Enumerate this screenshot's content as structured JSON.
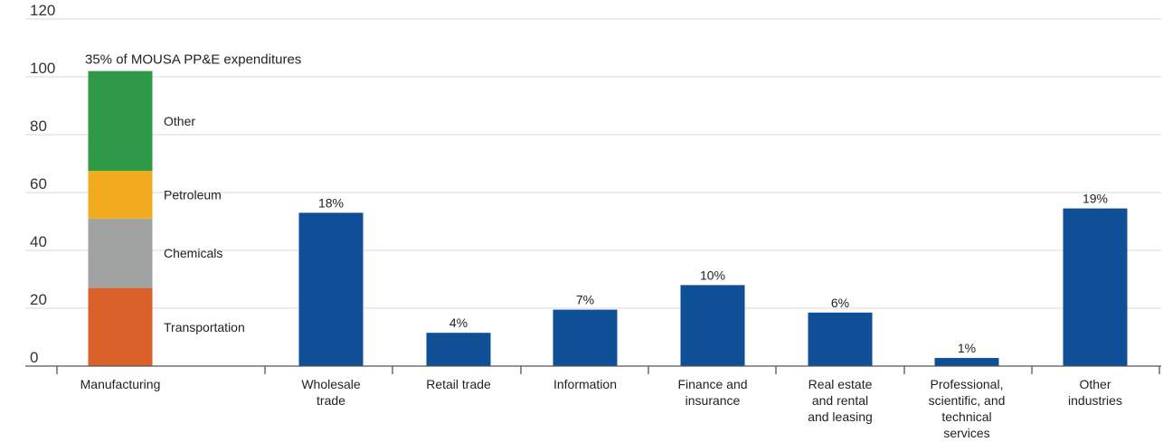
{
  "chart_data": {
    "type": "bar",
    "title": "",
    "xlabel": "",
    "ylabel": "",
    "ylim": [
      0,
      120
    ],
    "yticks": [
      0,
      20,
      40,
      60,
      80,
      100,
      120
    ],
    "grid": true,
    "bar_color": "#0F4F96",
    "categories": [
      "Manufacturing",
      "Wholesale trade",
      "Retail trade",
      "Information",
      "Finance and insurance",
      "Real estate and rental and leasing",
      "Professional, scientific, and technical services",
      "Other industries"
    ],
    "category_label_lines": [
      [
        "Manufacturing"
      ],
      [
        "Wholesale",
        "trade"
      ],
      [
        "Retail trade"
      ],
      [
        "Information"
      ],
      [
        "Finance and",
        "insurance"
      ],
      [
        "Real estate",
        "and rental",
        "and leasing"
      ],
      [
        "Professional,",
        "scientific, and",
        "technical",
        "services"
      ],
      [
        "Other",
        "industries"
      ]
    ],
    "values": [
      102,
      53,
      11.5,
      19.5,
      28,
      18.5,
      2.8,
      54.5
    ],
    "data_labels": [
      "",
      "18%",
      "4%",
      "7%",
      "10%",
      "6%",
      "1%",
      "19%"
    ],
    "stacked_category": {
      "category": "Manufacturing",
      "annotation": "35% of MOUSA PP&E expenditures",
      "segments": [
        {
          "name": "Transportation",
          "value": 27,
          "color": "#D9622B"
        },
        {
          "name": "Chemicals",
          "value": 24,
          "color": "#A1A3A3"
        },
        {
          "name": "Petroleum",
          "value": 16.5,
          "color": "#F0AB1F"
        },
        {
          "name": "Other",
          "value": 34.5,
          "color": "#2E9A48"
        }
      ]
    }
  }
}
